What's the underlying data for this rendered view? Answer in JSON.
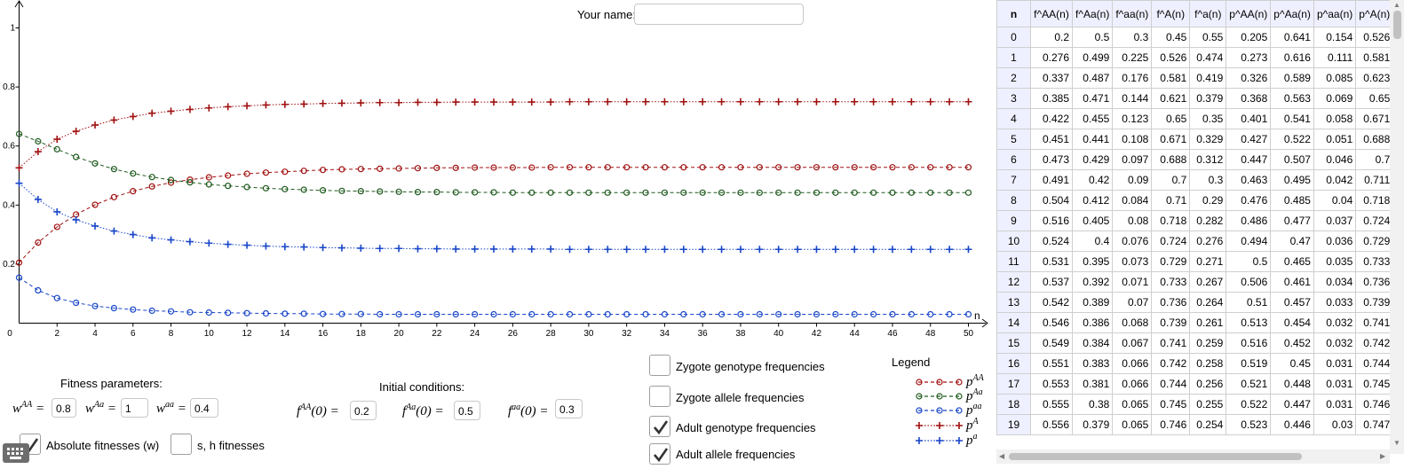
{
  "graph": {
    "axis": {
      "x_label": "n",
      "x_ticks": [
        "0",
        "2",
        "4",
        "6",
        "8",
        "10",
        "12",
        "14",
        "16",
        "18",
        "20",
        "22",
        "24",
        "26",
        "28",
        "30",
        "32",
        "34",
        "36",
        "38",
        "40",
        "42",
        "44",
        "46",
        "48",
        "50"
      ],
      "y_ticks": [
        "0.2",
        "0.4",
        "0.6",
        "0.8",
        "1"
      ]
    },
    "colors": {
      "red": "#a01010",
      "green": "#1e5a1e",
      "blue": "#1846c8"
    }
  },
  "chart_data": {
    "type": "line",
    "title": "",
    "xlabel": "n",
    "ylabel": "",
    "xlim": [
      0,
      50
    ],
    "ylim": [
      0,
      1.1
    ],
    "x": [
      0,
      1,
      2,
      3,
      4,
      5,
      6,
      7,
      8,
      9,
      10,
      11,
      12,
      13,
      14,
      15,
      16,
      17,
      18,
      19,
      20,
      21,
      22,
      23,
      24,
      25,
      26,
      27,
      28,
      29,
      30,
      31,
      32,
      33,
      34,
      35,
      36,
      37,
      38,
      39,
      40,
      41,
      42,
      43,
      44,
      45,
      46,
      47,
      48,
      49,
      50
    ],
    "series": [
      {
        "name": "p^AA",
        "marker": "circle",
        "color": "#a01010",
        "values": [
          0.205,
          0.273,
          0.326,
          0.368,
          0.401,
          0.427,
          0.447,
          0.463,
          0.476,
          0.486,
          0.494,
          0.5,
          0.506,
          0.51,
          0.513,
          0.516,
          0.519,
          0.521,
          0.522,
          0.523,
          0.524,
          0.525,
          0.526,
          0.526,
          0.527,
          0.527,
          0.527,
          0.527,
          0.528,
          0.528,
          0.528,
          0.528,
          0.528,
          0.528,
          0.528,
          0.528,
          0.528,
          0.528,
          0.528,
          0.528,
          0.528,
          0.528,
          0.528,
          0.528,
          0.528,
          0.528,
          0.528,
          0.528,
          0.528,
          0.528,
          0.528
        ]
      },
      {
        "name": "p^Aa",
        "marker": "circle",
        "color": "#1e5a1e",
        "values": [
          0.641,
          0.616,
          0.589,
          0.563,
          0.541,
          0.522,
          0.507,
          0.495,
          0.485,
          0.477,
          0.47,
          0.465,
          0.461,
          0.457,
          0.454,
          0.452,
          0.45,
          0.448,
          0.447,
          0.446,
          0.445,
          0.444,
          0.444,
          0.443,
          0.443,
          0.443,
          0.442,
          0.442,
          0.442,
          0.442,
          0.442,
          0.442,
          0.442,
          0.442,
          0.442,
          0.442,
          0.442,
          0.442,
          0.442,
          0.442,
          0.442,
          0.442,
          0.442,
          0.442,
          0.442,
          0.442,
          0.442,
          0.442,
          0.442,
          0.442,
          0.442
        ]
      },
      {
        "name": "p^aa",
        "marker": "circle",
        "color": "#1846c8",
        "values": [
          0.154,
          0.111,
          0.085,
          0.069,
          0.058,
          0.051,
          0.046,
          0.042,
          0.04,
          0.037,
          0.036,
          0.035,
          0.034,
          0.033,
          0.032,
          0.032,
          0.031,
          0.031,
          0.031,
          0.03,
          0.03,
          0.03,
          0.03,
          0.03,
          0.03,
          0.03,
          0.03,
          0.03,
          0.03,
          0.03,
          0.03,
          0.03,
          0.03,
          0.03,
          0.03,
          0.03,
          0.03,
          0.03,
          0.03,
          0.03,
          0.03,
          0.03,
          0.03,
          0.03,
          0.03,
          0.03,
          0.03,
          0.03,
          0.03,
          0.03,
          0.03
        ]
      },
      {
        "name": "p^A",
        "marker": "plus",
        "color": "#a01010",
        "values": [
          0.526,
          0.581,
          0.623,
          0.65,
          0.671,
          0.688,
          0.7,
          0.711,
          0.718,
          0.724,
          0.729,
          0.733,
          0.736,
          0.739,
          0.741,
          0.742,
          0.744,
          0.745,
          0.746,
          0.747,
          0.747,
          0.748,
          0.748,
          0.749,
          0.749,
          0.749,
          0.749,
          0.749,
          0.749,
          0.75,
          0.75,
          0.75,
          0.75,
          0.75,
          0.75,
          0.75,
          0.75,
          0.75,
          0.75,
          0.75,
          0.75,
          0.75,
          0.75,
          0.75,
          0.75,
          0.75,
          0.75,
          0.75,
          0.75,
          0.75,
          0.75
        ]
      },
      {
        "name": "p^a",
        "marker": "plus",
        "color": "#1846c8",
        "values": [
          0.474,
          0.419,
          0.377,
          0.35,
          0.329,
          0.312,
          0.3,
          0.289,
          0.282,
          0.276,
          0.271,
          0.267,
          0.264,
          0.261,
          0.259,
          0.258,
          0.256,
          0.255,
          0.254,
          0.253,
          0.253,
          0.252,
          0.252,
          0.251,
          0.251,
          0.251,
          0.251,
          0.251,
          0.251,
          0.25,
          0.25,
          0.25,
          0.25,
          0.25,
          0.25,
          0.25,
          0.25,
          0.25,
          0.25,
          0.25,
          0.25,
          0.25,
          0.25,
          0.25,
          0.25,
          0.25,
          0.25,
          0.25,
          0.25,
          0.25,
          0.25
        ]
      }
    ]
  },
  "name_field": {
    "label": "Your name:",
    "value": ""
  },
  "fitness": {
    "title": "Fitness parameters:",
    "wAA": {
      "symbol": "w",
      "sup": "AA",
      "value": "0.8"
    },
    "wAa": {
      "symbol": "w",
      "sup": "Aa",
      "value": "1"
    },
    "waa": {
      "symbol": "w",
      "sup": "aa",
      "value": "0.4"
    },
    "absolute_label": "Absolute fitnesses (w)",
    "sh_label": "s, h fitnesses"
  },
  "initial": {
    "title": "Initial conditions:",
    "fAA": {
      "symbol": "f",
      "sup": "AA",
      "arg": "(0) =",
      "value": "0.2"
    },
    "fAa": {
      "symbol": "f",
      "sup": "Aa",
      "arg": "(0) =",
      "value": "0.5"
    },
    "faa": {
      "symbol": "f",
      "sup": "aa",
      "arg": "(0) =",
      "value": "0.3"
    }
  },
  "options": [
    {
      "label": "Zygote genotype frequencies",
      "checked": false
    },
    {
      "label": "Zygote allele frequencies",
      "checked": false
    },
    {
      "label": "Adult genotype frequencies",
      "checked": true
    },
    {
      "label": "Adult allele frequencies",
      "checked": true
    }
  ],
  "legend": {
    "title": "Legend",
    "items": [
      {
        "symbol": "p",
        "sup": "AA",
        "marker": "circle",
        "color": "#a01010"
      },
      {
        "symbol": "p",
        "sup": "Aa",
        "marker": "circle",
        "color": "#1e5a1e"
      },
      {
        "symbol": "p",
        "sup": "aa",
        "marker": "circle",
        "color": "#1846c8"
      },
      {
        "symbol": "p",
        "sup": "A",
        "marker": "plus",
        "color": "#a01010"
      },
      {
        "symbol": "p",
        "sup": "a",
        "marker": "plus",
        "color": "#1846c8"
      }
    ]
  },
  "table": {
    "headers": [
      "n",
      "f^AA(n)",
      "f^Aa(n)",
      "f^aa(n)",
      "f^A(n)",
      "f^a(n)",
      "p^AA(n)",
      "p^Aa(n)",
      "p^aa(n)",
      "p^A(n)"
    ],
    "rows": [
      [
        "0",
        "0.2",
        "0.5",
        "0.3",
        "0.45",
        "0.55",
        "0.205",
        "0.641",
        "0.154",
        "0.526"
      ],
      [
        "1",
        "0.276",
        "0.499",
        "0.225",
        "0.526",
        "0.474",
        "0.273",
        "0.616",
        "0.111",
        "0.581"
      ],
      [
        "2",
        "0.337",
        "0.487",
        "0.176",
        "0.581",
        "0.419",
        "0.326",
        "0.589",
        "0.085",
        "0.623"
      ],
      [
        "3",
        "0.385",
        "0.471",
        "0.144",
        "0.621",
        "0.379",
        "0.368",
        "0.563",
        "0.069",
        "0.65"
      ],
      [
        "4",
        "0.422",
        "0.455",
        "0.123",
        "0.65",
        "0.35",
        "0.401",
        "0.541",
        "0.058",
        "0.671"
      ],
      [
        "5",
        "0.451",
        "0.441",
        "0.108",
        "0.671",
        "0.329",
        "0.427",
        "0.522",
        "0.051",
        "0.688"
      ],
      [
        "6",
        "0.473",
        "0.429",
        "0.097",
        "0.688",
        "0.312",
        "0.447",
        "0.507",
        "0.046",
        "0.7"
      ],
      [
        "7",
        "0.491",
        "0.42",
        "0.09",
        "0.7",
        "0.3",
        "0.463",
        "0.495",
        "0.042",
        "0.711"
      ],
      [
        "8",
        "0.504",
        "0.412",
        "0.084",
        "0.71",
        "0.29",
        "0.476",
        "0.485",
        "0.04",
        "0.718"
      ],
      [
        "9",
        "0.516",
        "0.405",
        "0.08",
        "0.718",
        "0.282",
        "0.486",
        "0.477",
        "0.037",
        "0.724"
      ],
      [
        "10",
        "0.524",
        "0.4",
        "0.076",
        "0.724",
        "0.276",
        "0.494",
        "0.47",
        "0.036",
        "0.729"
      ],
      [
        "11",
        "0.531",
        "0.395",
        "0.073",
        "0.729",
        "0.271",
        "0.5",
        "0.465",
        "0.035",
        "0.733"
      ],
      [
        "12",
        "0.537",
        "0.392",
        "0.071",
        "0.733",
        "0.267",
        "0.506",
        "0.461",
        "0.034",
        "0.736"
      ],
      [
        "13",
        "0.542",
        "0.389",
        "0.07",
        "0.736",
        "0.264",
        "0.51",
        "0.457",
        "0.033",
        "0.739"
      ],
      [
        "14",
        "0.546",
        "0.386",
        "0.068",
        "0.739",
        "0.261",
        "0.513",
        "0.454",
        "0.032",
        "0.741"
      ],
      [
        "15",
        "0.549",
        "0.384",
        "0.067",
        "0.741",
        "0.259",
        "0.516",
        "0.452",
        "0.032",
        "0.742"
      ],
      [
        "16",
        "0.551",
        "0.383",
        "0.066",
        "0.742",
        "0.258",
        "0.519",
        "0.45",
        "0.031",
        "0.744"
      ],
      [
        "17",
        "0.553",
        "0.381",
        "0.066",
        "0.744",
        "0.256",
        "0.521",
        "0.448",
        "0.031",
        "0.745"
      ],
      [
        "18",
        "0.555",
        "0.38",
        "0.065",
        "0.745",
        "0.255",
        "0.522",
        "0.447",
        "0.031",
        "0.746"
      ],
      [
        "19",
        "0.556",
        "0.379",
        "0.065",
        "0.746",
        "0.254",
        "0.523",
        "0.446",
        "0.03",
        "0.747"
      ]
    ]
  }
}
